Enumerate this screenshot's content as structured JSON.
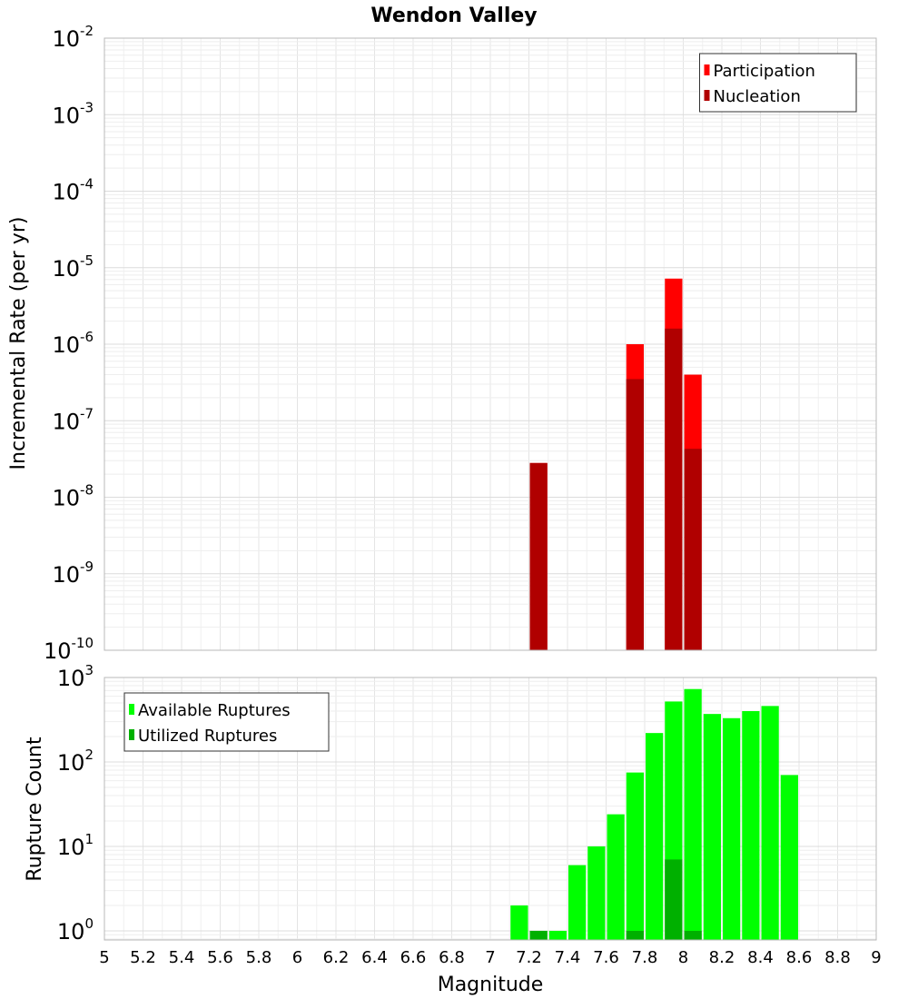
{
  "chart_data": [
    {
      "type": "bar",
      "title": "Wendon Valley",
      "xlabel": "",
      "ylabel": "Incremental Rate (per yr)",
      "yscale": "log",
      "ylim": [
        1e-10,
        0.01
      ],
      "xlim": [
        5,
        9
      ],
      "y_ticks": [
        {
          "base": "10",
          "exp": "-10",
          "value": 1e-10
        },
        {
          "base": "10",
          "exp": "-9",
          "value": 1e-09
        },
        {
          "base": "10",
          "exp": "-8",
          "value": 1e-08
        },
        {
          "base": "10",
          "exp": "-7",
          "value": 1e-07
        },
        {
          "base": "10",
          "exp": "-6",
          "value": 1e-06
        },
        {
          "base": "10",
          "exp": "-5",
          "value": 1e-05
        },
        {
          "base": "10",
          "exp": "-4",
          "value": 0.0001
        },
        {
          "base": "10",
          "exp": "-3",
          "value": 0.001
        },
        {
          "base": "10",
          "exp": "-2",
          "value": 0.01
        }
      ],
      "grid": true,
      "legend_position": "top-right",
      "series": [
        {
          "name": "Participation",
          "color": "#ff0000",
          "x": [
            7.25,
            7.75,
            7.95,
            8.05
          ],
          "values": [
            2.8e-08,
            1e-06,
            7.2e-06,
            4e-07
          ]
        },
        {
          "name": "Nucleation",
          "color": "#b00000",
          "x": [
            7.25,
            7.75,
            7.95,
            8.05
          ],
          "values": [
            2.8e-08,
            3.5e-07,
            1.6e-06,
            4.3e-08
          ]
        }
      ]
    },
    {
      "type": "bar",
      "title": "",
      "xlabel": "Magnitude",
      "ylabel": "Rupture Count",
      "yscale": "log",
      "ylim": [
        0.78,
        1000
      ],
      "xlim": [
        5,
        9
      ],
      "y_ticks": [
        {
          "base": "10",
          "exp": "0",
          "value": 1
        },
        {
          "base": "10",
          "exp": "1",
          "value": 10
        },
        {
          "base": "10",
          "exp": "2",
          "value": 100
        },
        {
          "base": "10",
          "exp": "3",
          "value": 1000
        }
      ],
      "x_ticks": [
        "5",
        "5.2",
        "5.4",
        "5.6",
        "5.8",
        "6",
        "6.2",
        "6.4",
        "6.6",
        "6.8",
        "7",
        "7.2",
        "7.4",
        "7.6",
        "7.8",
        "8",
        "8.2",
        "8.4",
        "8.6",
        "8.8",
        "9"
      ],
      "grid": true,
      "legend_position": "top-left",
      "series": [
        {
          "name": "Available Ruptures",
          "color": "#00ff00",
          "x": [
            7.15,
            7.25,
            7.35,
            7.45,
            7.55,
            7.65,
            7.75,
            7.85,
            7.95,
            8.05,
            8.15,
            8.25,
            8.35,
            8.45,
            8.55
          ],
          "values": [
            2,
            1,
            1,
            6,
            10,
            24,
            75,
            220,
            520,
            730,
            370,
            330,
            400,
            460,
            70
          ]
        },
        {
          "name": "Utilized Ruptures",
          "color": "#00b000",
          "x": [
            7.25,
            7.75,
            7.95,
            8.05
          ],
          "values": [
            1,
            1,
            7,
            1
          ]
        }
      ]
    }
  ]
}
